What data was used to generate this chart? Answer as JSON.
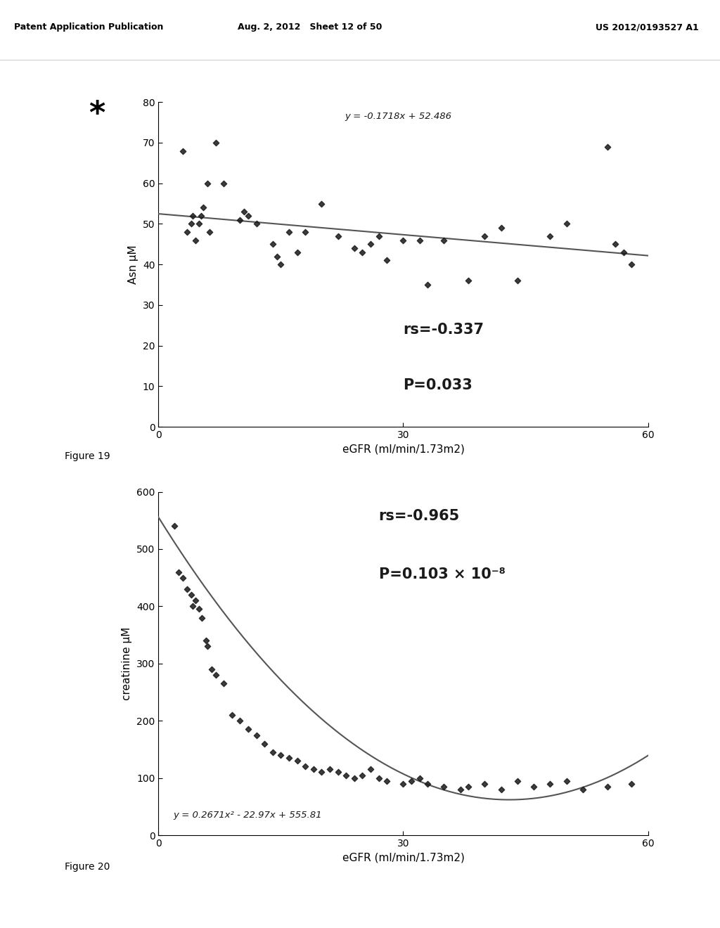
{
  "header_left": "Patent Application Publication",
  "header_mid": "Aug. 2, 2012   Sheet 12 of 50",
  "header_right": "US 2012/0193527 A1",
  "fig19_label": "Figure 19",
  "fig20_label": "Figure 20",
  "plot1": {
    "title_eq": "y = -0.1718x + 52.486",
    "xlabel": "eGFR (ml/min/1.73m2)",
    "ylabel": "Asn μM",
    "xlim": [
      0,
      60
    ],
    "ylim": [
      0,
      80
    ],
    "xticks": [
      0,
      30,
      60
    ],
    "yticks": [
      0,
      10,
      20,
      30,
      40,
      50,
      60,
      70,
      80
    ],
    "rs_text": "rs=-0.337",
    "p_text": "P=0.033",
    "slope": -0.1718,
    "intercept": 52.486,
    "scatter_x": [
      3,
      3.5,
      4,
      4.2,
      4.5,
      5,
      5.2,
      5.5,
      6,
      6.3,
      7,
      8,
      10,
      10.5,
      11,
      12,
      14,
      14.5,
      15,
      16,
      17,
      18,
      20,
      22,
      24,
      25,
      26,
      27,
      28,
      30,
      32,
      33,
      35,
      38,
      40,
      42,
      44,
      48,
      50,
      55,
      56,
      57,
      58
    ],
    "scatter_y": [
      68,
      48,
      50,
      52,
      46,
      50,
      52,
      54,
      60,
      48,
      70,
      60,
      51,
      53,
      52,
      50,
      45,
      42,
      40,
      48,
      43,
      48,
      55,
      47,
      44,
      43,
      45,
      47,
      41,
      46,
      46,
      35,
      46,
      36,
      47,
      49,
      36,
      47,
      50,
      69,
      45,
      43,
      40
    ]
  },
  "plot2": {
    "title_eq": "y = 0.2671x² - 22.97x + 555.81",
    "xlabel": "eGFR (ml/min/1.73m2)",
    "ylabel": "creatinine μM",
    "xlim": [
      0,
      60
    ],
    "ylim": [
      0,
      600
    ],
    "xticks": [
      0,
      30,
      60
    ],
    "yticks": [
      0,
      100,
      200,
      300,
      400,
      500,
      600
    ],
    "rs_text": "rs=-0.965",
    "p_text": "P=0.103 × 10⁻⁸",
    "a": 0.2671,
    "b": -22.97,
    "c": 555.81,
    "scatter_x": [
      2,
      2.5,
      3,
      3.5,
      4,
      4.2,
      4.5,
      5,
      5.3,
      5.8,
      6,
      6.5,
      7,
      8,
      9,
      10,
      11,
      12,
      13,
      14,
      15,
      16,
      17,
      18,
      19,
      20,
      21,
      22,
      23,
      24,
      25,
      26,
      27,
      28,
      30,
      31,
      32,
      33,
      35,
      37,
      38,
      40,
      42,
      44,
      46,
      48,
      50,
      52,
      55,
      58
    ],
    "scatter_y": [
      540,
      460,
      450,
      430,
      420,
      400,
      410,
      395,
      380,
      340,
      330,
      290,
      280,
      265,
      210,
      200,
      185,
      175,
      160,
      145,
      140,
      135,
      130,
      120,
      115,
      110,
      115,
      110,
      105,
      100,
      105,
      115,
      100,
      95,
      90,
      95,
      100,
      90,
      85,
      80,
      85,
      90,
      80,
      95,
      85,
      90,
      95,
      80,
      85,
      90
    ]
  },
  "bg_color": "#ffffff",
  "scatter_color": "#1a1a1a",
  "line_color": "#555555",
  "text_color": "#1a1a1a",
  "font_family": "DejaVu Sans"
}
